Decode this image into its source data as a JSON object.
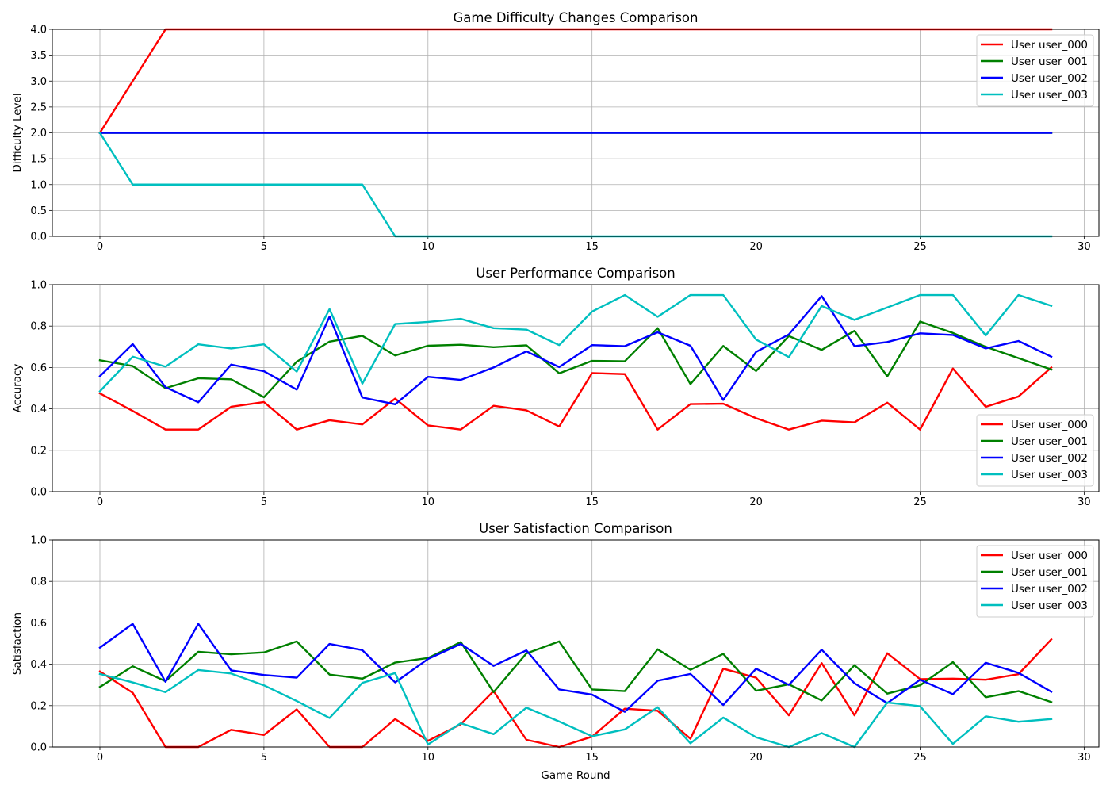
{
  "chart_data": [
    {
      "type": "line",
      "title": "Game Difficulty Changes Comparison",
      "xlabel": "",
      "ylabel": "Difficulty Level",
      "xlim": [
        -1.45,
        30.45
      ],
      "ylim": [
        0,
        4
      ],
      "xticks": [
        0,
        5,
        10,
        15,
        20,
        25,
        30
      ],
      "yticks": [
        "0.0",
        "0.5",
        "1.0",
        "1.5",
        "2.0",
        "2.5",
        "3.0",
        "3.5",
        "4.0"
      ],
      "grid": true,
      "legend_position": "top-right",
      "x": [
        0,
        1,
        2,
        3,
        4,
        5,
        6,
        7,
        8,
        9,
        10,
        11,
        12,
        13,
        14,
        15,
        16,
        17,
        18,
        19,
        20,
        21,
        22,
        23,
        24,
        25,
        26,
        27,
        28,
        29
      ],
      "series": [
        {
          "name": "User user_000",
          "color": "#ff0000",
          "values": [
            2,
            3,
            4,
            4,
            4,
            4,
            4,
            4,
            4,
            4,
            4,
            4,
            4,
            4,
            4,
            4,
            4,
            4,
            4,
            4,
            4,
            4,
            4,
            4,
            4,
            4,
            4,
            4,
            4,
            4
          ]
        },
        {
          "name": "User user_001",
          "color": "#008000",
          "values": [
            2,
            2,
            2,
            2,
            2,
            2,
            2,
            2,
            2,
            2,
            2,
            2,
            2,
            2,
            2,
            2,
            2,
            2,
            2,
            2,
            2,
            2,
            2,
            2,
            2,
            2,
            2,
            2,
            2,
            2
          ]
        },
        {
          "name": "User user_002",
          "color": "#0000ff",
          "values": [
            2,
            2,
            2,
            2,
            2,
            2,
            2,
            2,
            2,
            2,
            2,
            2,
            2,
            2,
            2,
            2,
            2,
            2,
            2,
            2,
            2,
            2,
            2,
            2,
            2,
            2,
            2,
            2,
            2,
            2
          ]
        },
        {
          "name": "User user_003",
          "color": "#00bfbf",
          "values": [
            2,
            1,
            1,
            1,
            1,
            1,
            1,
            1,
            1,
            0,
            0,
            0,
            0,
            0,
            0,
            0,
            0,
            0,
            0,
            0,
            0,
            0,
            0,
            0,
            0,
            0,
            0,
            0,
            0,
            0
          ]
        }
      ]
    },
    {
      "type": "line",
      "title": "User Performance Comparison",
      "xlabel": "",
      "ylabel": "Accuracy",
      "xlim": [
        -1.45,
        30.45
      ],
      "ylim": [
        0,
        1
      ],
      "xticks": [
        0,
        5,
        10,
        15,
        20,
        25,
        30
      ],
      "yticks": [
        "0.0",
        "0.2",
        "0.4",
        "0.6",
        "0.8",
        "1.0"
      ],
      "grid": true,
      "legend_position": "bottom-right",
      "x": [
        0,
        1,
        2,
        3,
        4,
        5,
        6,
        7,
        8,
        9,
        10,
        11,
        12,
        13,
        14,
        15,
        16,
        17,
        18,
        19,
        20,
        21,
        22,
        23,
        24,
        25,
        26,
        27,
        28,
        29
      ],
      "series": [
        {
          "name": "User user_000",
          "color": "#ff0000",
          "values": [
            0.475,
            0.39,
            0.3,
            0.3,
            0.41,
            0.433,
            0.3,
            0.345,
            0.325,
            0.45,
            0.32,
            0.3,
            0.415,
            0.393,
            0.315,
            0.573,
            0.568,
            0.3,
            0.423,
            0.425,
            0.355,
            0.3,
            0.343,
            0.335,
            0.43,
            0.3,
            0.595,
            0.41,
            0.46,
            0.6
          ]
        },
        {
          "name": "User user_001",
          "color": "#008000",
          "values": [
            0.635,
            0.607,
            0.5,
            0.548,
            0.543,
            0.456,
            0.628,
            0.725,
            0.753,
            0.658,
            0.705,
            0.71,
            0.698,
            0.707,
            0.572,
            0.632,
            0.63,
            0.79,
            0.52,
            0.704,
            0.583,
            0.752,
            0.685,
            0.777,
            0.557,
            0.822,
            0.767,
            0.7,
            0.645,
            0.59
          ]
        },
        {
          "name": "User user_002",
          "color": "#0000ff",
          "values": [
            0.558,
            0.713,
            0.505,
            0.432,
            0.614,
            0.582,
            0.493,
            0.846,
            0.455,
            0.422,
            0.555,
            0.54,
            0.6,
            0.678,
            0.602,
            0.708,
            0.703,
            0.77,
            0.705,
            0.443,
            0.675,
            0.76,
            0.945,
            0.703,
            0.723,
            0.765,
            0.757,
            0.692,
            0.728,
            0.652
          ]
        },
        {
          "name": "User user_003",
          "color": "#00bfbf",
          "values": [
            0.485,
            0.652,
            0.604,
            0.712,
            0.692,
            0.712,
            0.58,
            0.882,
            0.522,
            0.81,
            0.82,
            0.835,
            0.79,
            0.783,
            0.708,
            0.87,
            0.95,
            0.845,
            0.95,
            0.95,
            0.735,
            0.65,
            0.897,
            0.83,
            0.89,
            0.95,
            0.95,
            0.755,
            0.95,
            0.898
          ]
        }
      ]
    },
    {
      "type": "line",
      "title": "User Satisfaction Comparison",
      "xlabel": "Game Round",
      "ylabel": "Satisfaction",
      "xlim": [
        -1.45,
        30.45
      ],
      "ylim": [
        0,
        1
      ],
      "xticks": [
        0,
        5,
        10,
        15,
        20,
        25,
        30
      ],
      "yticks": [
        "0.0",
        "0.2",
        "0.4",
        "0.6",
        "0.8",
        "1.0"
      ],
      "grid": true,
      "legend_position": "top-right",
      "x": [
        0,
        1,
        2,
        3,
        4,
        5,
        6,
        7,
        8,
        9,
        10,
        11,
        12,
        13,
        14,
        15,
        16,
        17,
        18,
        19,
        20,
        21,
        22,
        23,
        24,
        25,
        26,
        27,
        28,
        29
      ],
      "series": [
        {
          "name": "User user_000",
          "color": "#ff0000",
          "values": [
            0.365,
            0.262,
            0.0,
            0.0,
            0.083,
            0.058,
            0.182,
            0.0,
            0.0,
            0.135,
            0.03,
            0.11,
            0.27,
            0.035,
            0.0,
            0.05,
            0.185,
            0.175,
            0.04,
            0.378,
            0.335,
            0.153,
            0.405,
            0.153,
            0.453,
            0.328,
            0.33,
            0.325,
            0.352,
            0.52
          ]
        },
        {
          "name": "User user_001",
          "color": "#008000",
          "values": [
            0.29,
            0.39,
            0.318,
            0.46,
            0.448,
            0.457,
            0.51,
            0.35,
            0.33,
            0.408,
            0.43,
            0.507,
            0.265,
            0.452,
            0.51,
            0.278,
            0.27,
            0.472,
            0.373,
            0.45,
            0.272,
            0.303,
            0.225,
            0.395,
            0.258,
            0.298,
            0.41,
            0.24,
            0.27,
            0.217
          ]
        },
        {
          "name": "User user_002",
          "color": "#0000ff",
          "values": [
            0.48,
            0.595,
            0.315,
            0.595,
            0.37,
            0.348,
            0.335,
            0.498,
            0.468,
            0.312,
            0.425,
            0.498,
            0.392,
            0.467,
            0.278,
            0.253,
            0.17,
            0.32,
            0.353,
            0.203,
            0.378,
            0.3,
            0.47,
            0.308,
            0.212,
            0.325,
            0.255,
            0.407,
            0.358,
            0.267
          ]
        },
        {
          "name": "User user_003",
          "color": "#00bfbf",
          "values": [
            0.353,
            0.312,
            0.265,
            0.372,
            0.355,
            0.298,
            0.222,
            0.14,
            0.31,
            0.357,
            0.012,
            0.115,
            0.062,
            0.19,
            0.123,
            0.052,
            0.085,
            0.192,
            0.018,
            0.142,
            0.047,
            0.0,
            0.067,
            0.0,
            0.215,
            0.197,
            0.015,
            0.148,
            0.122,
            0.135
          ]
        }
      ]
    }
  ]
}
